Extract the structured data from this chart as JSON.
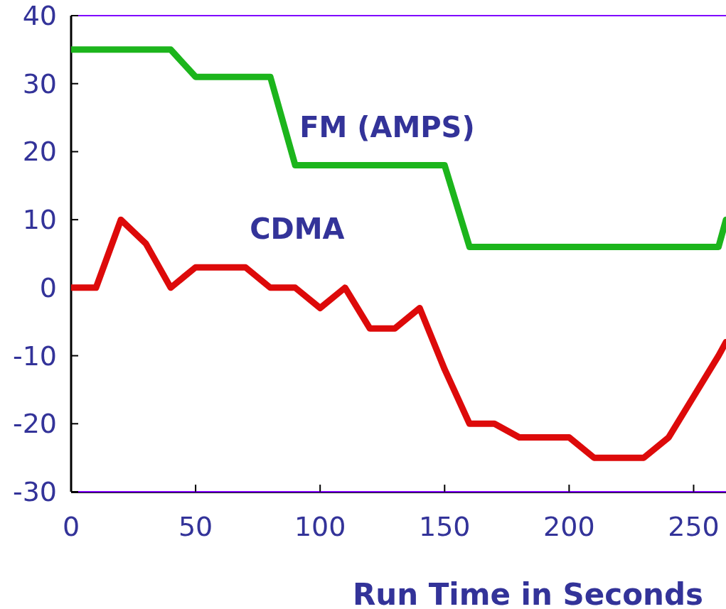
{
  "chart_data": {
    "type": "line",
    "xlabel": "Run Time in Seconds",
    "xlim": [
      0,
      263
    ],
    "xticks": [
      0,
      50,
      100,
      150,
      200,
      250
    ],
    "ylim": [
      -30,
      40
    ],
    "yticks": [
      -30,
      -20,
      -10,
      0,
      10,
      20,
      30,
      40
    ],
    "grid": false,
    "marker": "none",
    "line_style": "solid",
    "ref_lines": [
      {
        "axis": "y",
        "value": 40,
        "color": "#7f00ff"
      },
      {
        "axis": "y",
        "value": -30,
        "color": "#7f00ff"
      }
    ],
    "series": [
      {
        "name": "FM (AMPS)",
        "color": "#1cb51c",
        "x": [
          0,
          40,
          50,
          80,
          90,
          150,
          160,
          260,
          263
        ],
        "values": [
          35,
          35,
          31,
          31,
          18,
          18,
          6,
          6,
          10
        ]
      },
      {
        "name": "CDMA",
        "color": "#dd0a0a",
        "x": [
          0,
          10,
          20,
          30,
          40,
          50,
          70,
          80,
          90,
          100,
          110,
          120,
          130,
          140,
          150,
          160,
          170,
          180,
          200,
          210,
          230,
          240,
          250,
          260,
          263
        ],
        "values": [
          0,
          0,
          10,
          6.5,
          0,
          3,
          3,
          0,
          0,
          -3,
          0,
          -6,
          -6,
          -3,
          -12,
          -20,
          -20,
          -22,
          -22,
          -25,
          -25,
          -22,
          -16,
          -10,
          -8
        ]
      }
    ]
  }
}
